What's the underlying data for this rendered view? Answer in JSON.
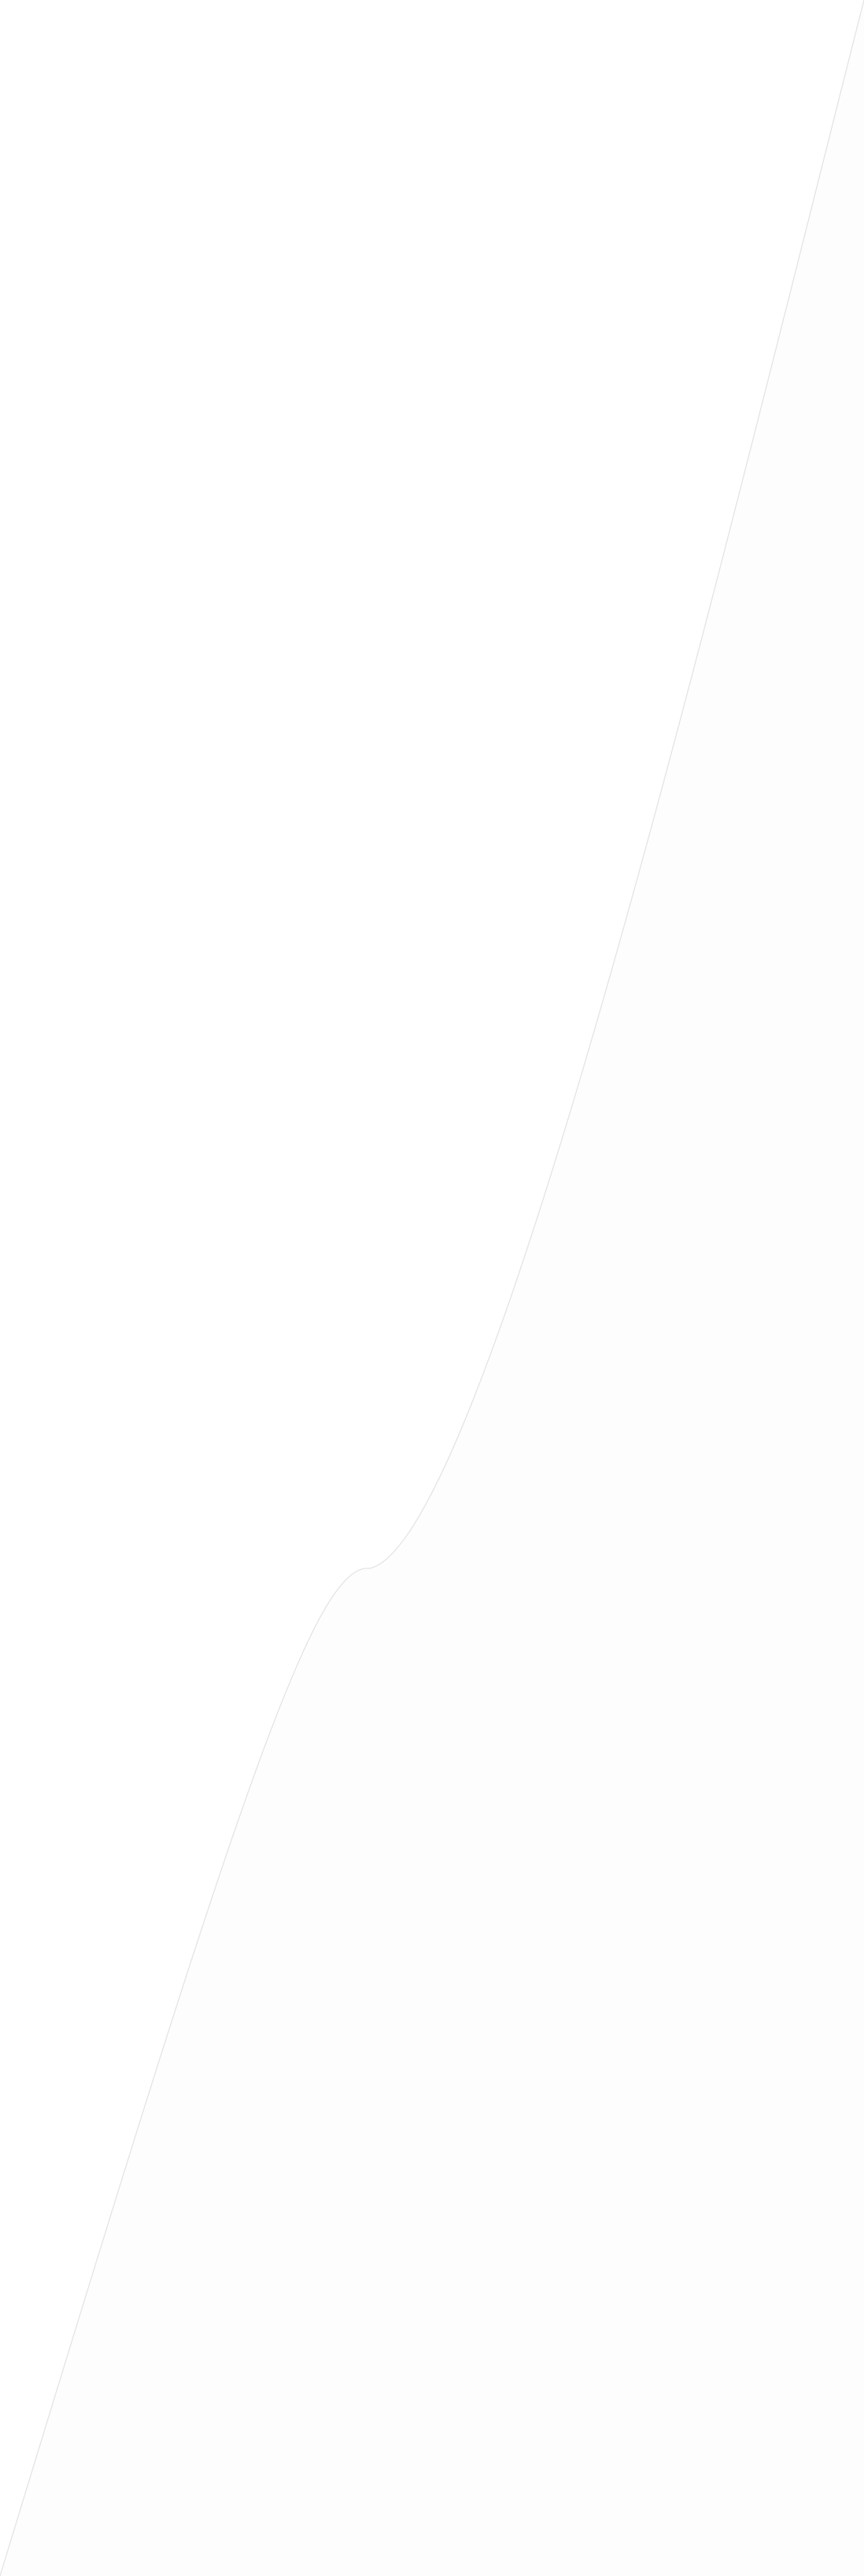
{
  "page": {
    "background": "#fefefe",
    "colors": {
      "left_region": "#ffffff",
      "right_region": "#fdfdfd",
      "divider_line": "#e2e2e2"
    }
  }
}
